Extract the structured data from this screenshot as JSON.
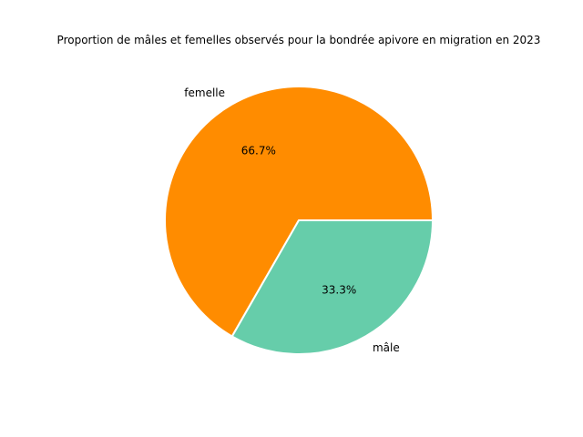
{
  "chart_data": {
    "type": "pie",
    "title": "Proportion de mâles et femelles observés pour la bondrée apivore en migration en 2023",
    "categories": [
      "femelle",
      "mâle"
    ],
    "values": [
      66.7,
      33.3
    ],
    "percent_labels": [
      "66.7%",
      "33.3%"
    ],
    "colors": [
      "#ff8c00",
      "#66cdaa"
    ],
    "start_angle_deg": 0,
    "direction": "counterclockwise",
    "slice_edge_color": "#ffffff"
  }
}
